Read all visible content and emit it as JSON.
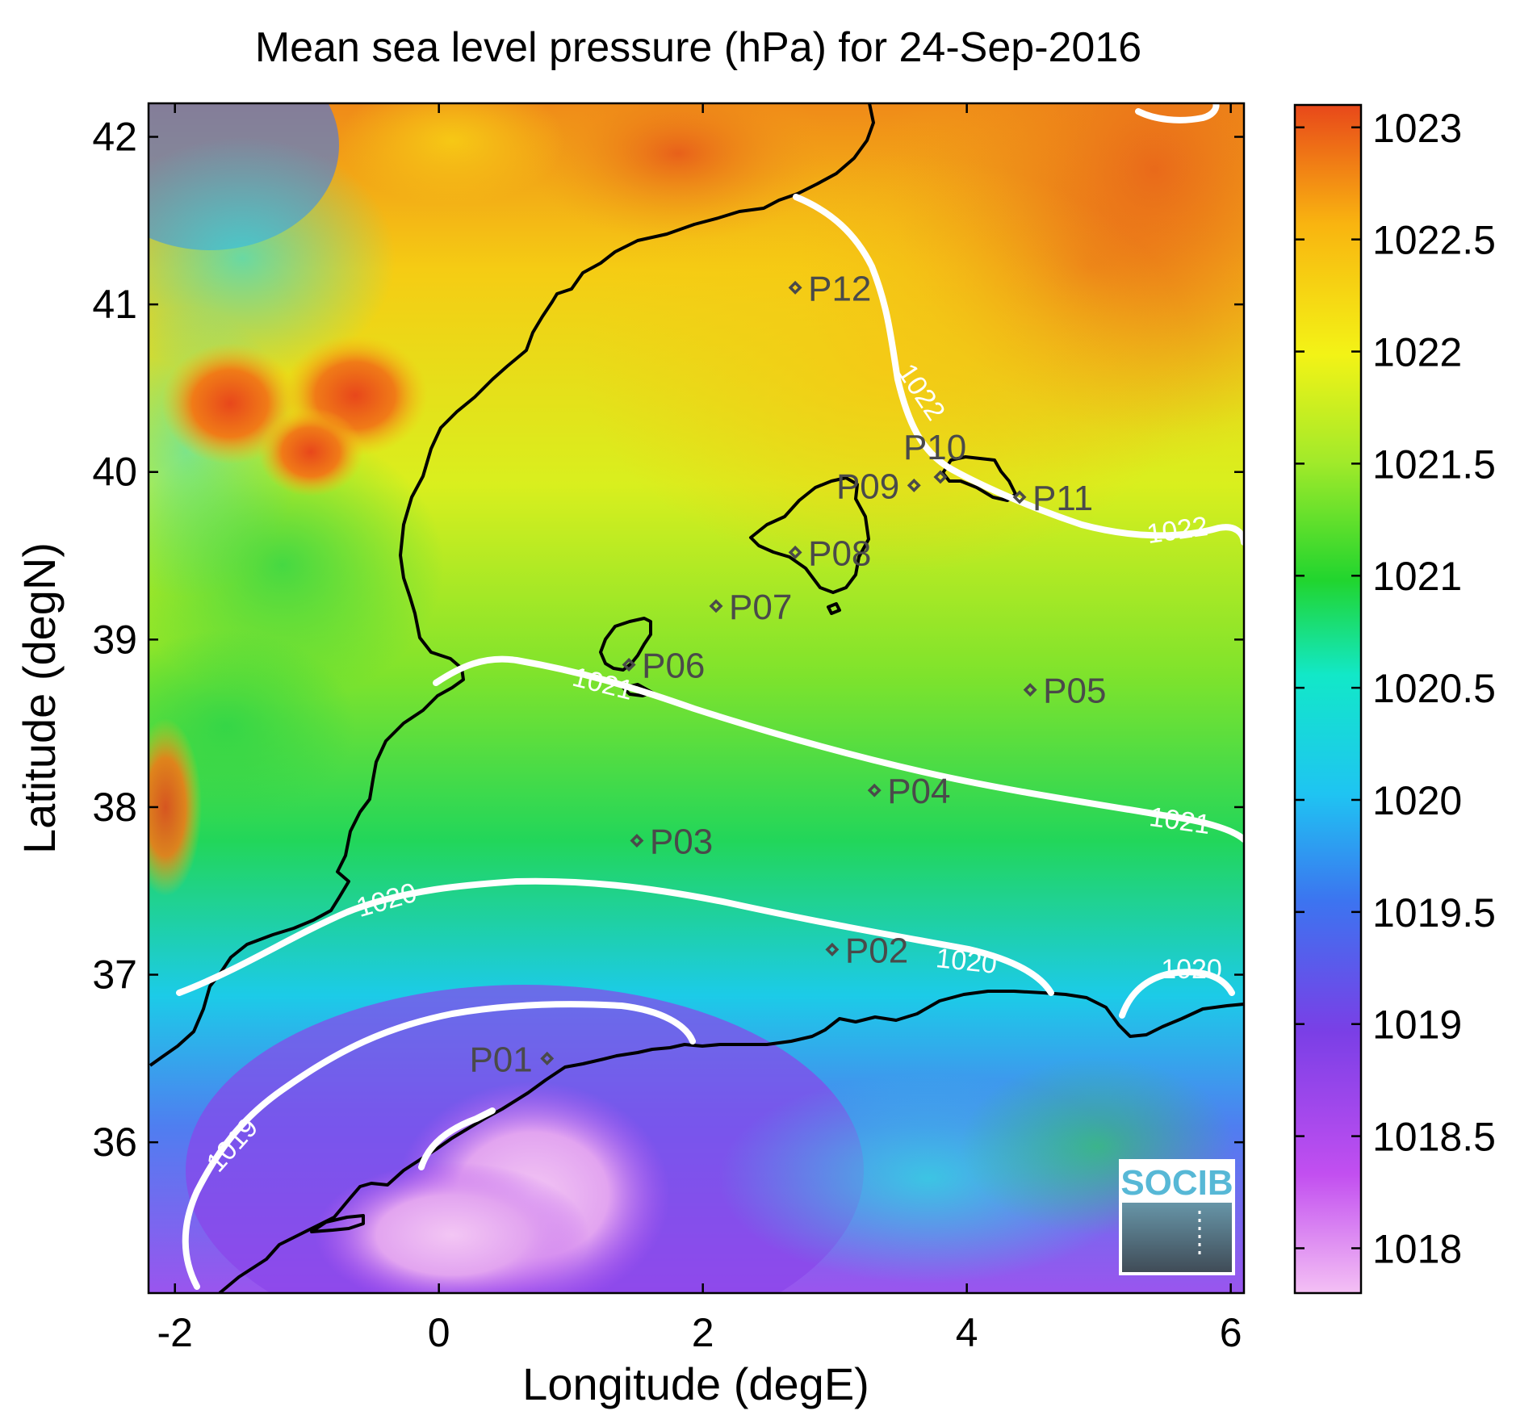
{
  "title": "Mean sea level pressure (hPa) for 24-Sep-2016",
  "x_axis": {
    "label": "Longitude (degE)",
    "ticks": [
      "-2",
      "0",
      "2",
      "4",
      "6"
    ],
    "range": [
      -2.2,
      6.1
    ]
  },
  "y_axis": {
    "label": "Latitude (degN)",
    "ticks": [
      "36",
      "37",
      "38",
      "39",
      "40",
      "41",
      "42"
    ],
    "range": [
      35.1,
      42.2
    ]
  },
  "colorbar": {
    "ticks": [
      "1018",
      "1018.5",
      "1019",
      "1019.5",
      "1020",
      "1020.5",
      "1021",
      "1021.5",
      "1022",
      "1022.5",
      "1023"
    ],
    "range": [
      1017.8,
      1023.1
    ],
    "colors": [
      "#f4c0f4",
      "#c24ff0",
      "#7a3fe6",
      "#3c74f0",
      "#1fc4f2",
      "#12e8c8",
      "#21d52e",
      "#a2ea2a",
      "#f3f316",
      "#f9b410",
      "#e8481a"
    ]
  },
  "isobar_labels": {
    "l1019": "1019",
    "l1020a": "1020",
    "l1020b": "1020",
    "l1020c": "1020",
    "l1021a": "1021",
    "l1021b": "1021",
    "l1022a": "1022",
    "l1022b": "1022"
  },
  "stations": [
    {
      "id": "P01",
      "lon": 0.82,
      "lat": 36.5
    },
    {
      "id": "P02",
      "lon": 2.98,
      "lat": 37.15
    },
    {
      "id": "P03",
      "lon": 1.5,
      "lat": 37.8
    },
    {
      "id": "P04",
      "lon": 3.3,
      "lat": 38.1
    },
    {
      "id": "P05",
      "lon": 4.48,
      "lat": 38.7
    },
    {
      "id": "P06",
      "lon": 1.44,
      "lat": 38.85
    },
    {
      "id": "P07",
      "lon": 2.1,
      "lat": 39.2
    },
    {
      "id": "P08",
      "lon": 2.7,
      "lat": 39.52
    },
    {
      "id": "P09",
      "lon": 3.6,
      "lat": 39.92
    },
    {
      "id": "P10",
      "lon": 3.8,
      "lat": 39.97
    },
    {
      "id": "P11",
      "lon": 4.4,
      "lat": 39.85
    },
    {
      "id": "P12",
      "lon": 2.7,
      "lat": 41.1
    }
  ],
  "logo": {
    "text": "SOCIB",
    "color": "#57b8d6"
  }
}
